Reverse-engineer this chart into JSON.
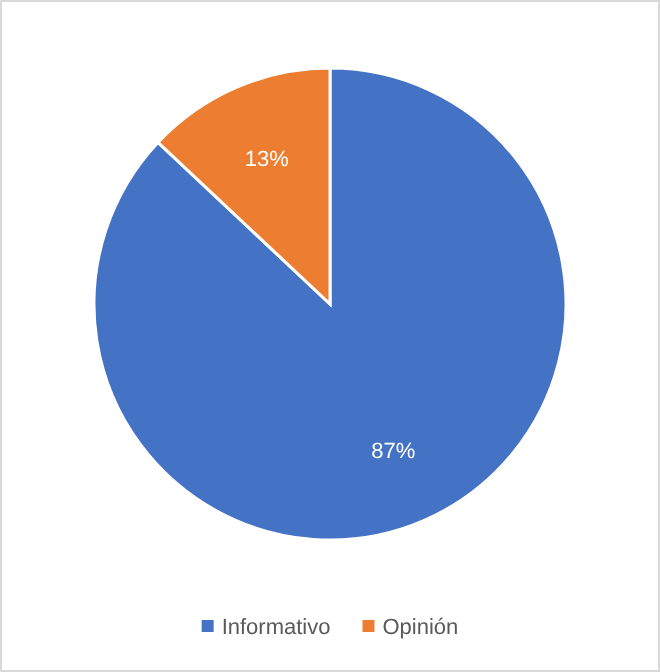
{
  "chart_data": {
    "type": "pie",
    "categories": [
      "Informativo",
      "Opinión"
    ],
    "values": [
      87,
      13
    ],
    "colors": [
      "#4472c4",
      "#ed7d31"
    ],
    "value_labels": [
      "87%",
      "13%"
    ],
    "legend": "bottom"
  }
}
